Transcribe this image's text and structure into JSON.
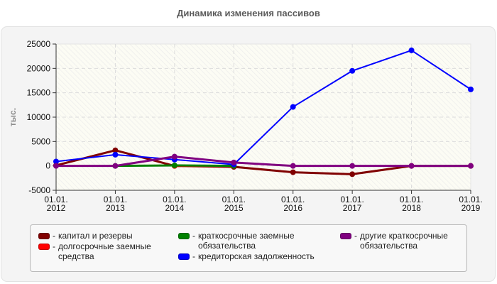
{
  "chart_data": {
    "type": "line",
    "title": "Динамика изменения пассивов",
    "xlabel": "",
    "ylabel": "тыс.",
    "ylim": [
      -5000,
      25000
    ],
    "yticks": [
      -5000,
      0,
      5000,
      10000,
      15000,
      20000,
      25000
    ],
    "grid": true,
    "legend_position": "bottom",
    "categories": [
      "01.01.\n2012",
      "01.01.\n2013",
      "01.01.\n2014",
      "01.01.\n2015",
      "01.01.\n2016",
      "01.01.\n2017",
      "01.01.\n2018",
      "01.01.\n2019"
    ],
    "series": [
      {
        "name": "капитал и резервы",
        "color": "#800000",
        "values": [
          100,
          3200,
          0,
          -200,
          -1300,
          -1700,
          0,
          0
        ]
      },
      {
        "name": "долгосрочные заемные средства",
        "color": "#ff0000",
        "values": [
          null,
          null,
          0,
          0,
          null,
          null,
          null,
          null
        ]
      },
      {
        "name": "краткосрочные заемные обязательства",
        "color": "#008000",
        "values": [
          null,
          0,
          100,
          0,
          null,
          null,
          null,
          null
        ]
      },
      {
        "name": "кредиторская задолженность",
        "color": "#0000ff",
        "values": [
          900,
          2300,
          1300,
          300,
          12100,
          19500,
          23700,
          15700
        ]
      },
      {
        "name": "другие краткосрочные обязательства",
        "color": "#800080",
        "values": [
          0,
          0,
          1900,
          700,
          0,
          0,
          0,
          0
        ]
      }
    ]
  },
  "legend": {
    "items": [
      {
        "label": "капитал и резервы",
        "color": "#800000"
      },
      {
        "label": "долгосрочные заемные\nсредства",
        "color": "#ff0000"
      },
      {
        "label": "краткосрочные заемные\nобязательства",
        "color": "#008000"
      },
      {
        "label": "кредиторская задолженность",
        "color": "#0000ff"
      },
      {
        "label": "другие краткосрочные\nобязательства",
        "color": "#800080"
      }
    ]
  }
}
